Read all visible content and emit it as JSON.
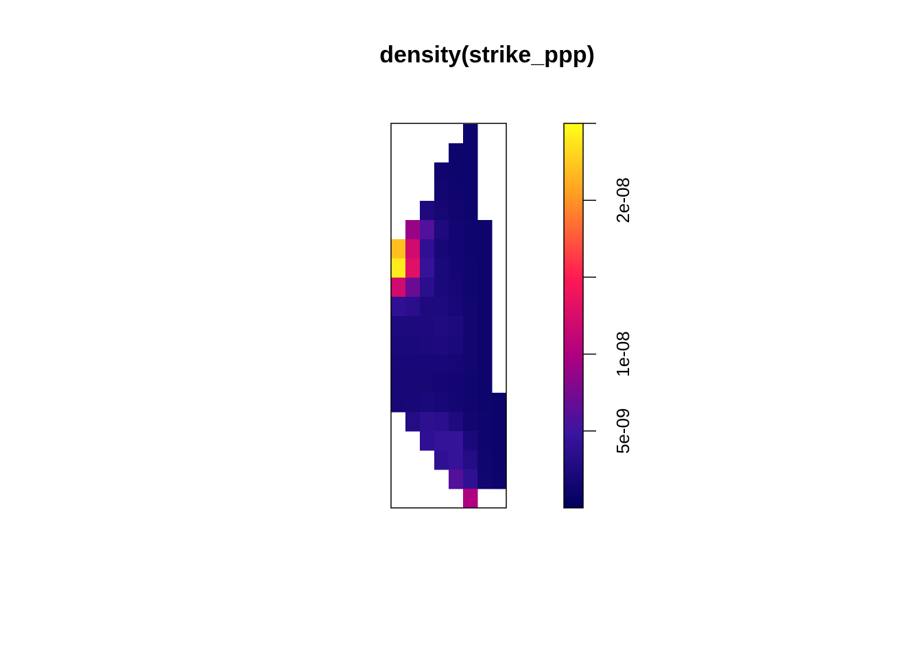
{
  "chart_data": {
    "type": "heatmap",
    "title": "density(strike_ppp)",
    "values": [
      [
        null,
        null,
        null,
        null,
        null,
        1.2e-09,
        null,
        null
      ],
      [
        null,
        null,
        null,
        null,
        1.2e-09,
        1.2e-09,
        null,
        null
      ],
      [
        null,
        null,
        null,
        1.3e-09,
        1.2e-09,
        1.2e-09,
        null,
        null
      ],
      [
        null,
        null,
        null,
        1.5e-09,
        1.3e-09,
        1.2e-09,
        null,
        null
      ],
      [
        null,
        null,
        2.5e-09,
        1.8e-09,
        1.4e-09,
        1.2e-09,
        null,
        null
      ],
      [
        null,
        9e-09,
        6e-09,
        2.5e-09,
        1.6e-09,
        1.3e-09,
        1.2e-09,
        null
      ],
      [
        2.2e-08,
        1.2e-08,
        4e-09,
        2e-09,
        1.6e-09,
        1.3e-09,
        1.2e-09,
        null
      ],
      [
        2.4e-08,
        1.3e-08,
        4.5e-09,
        2.2e-09,
        1.7e-09,
        1.4e-09,
        1.2e-09,
        null
      ],
      [
        1.2e-08,
        7e-09,
        3.5e-09,
        2.2e-09,
        1.8e-09,
        1.4e-09,
        1.2e-09,
        null
      ],
      [
        4e-09,
        3.5e-09,
        2.5e-09,
        2.4e-09,
        2e-09,
        1.5e-09,
        1.2e-09,
        null
      ],
      [
        2.5e-09,
        2.4e-09,
        2.5e-09,
        2.7e-09,
        2.4e-09,
        1.6e-09,
        1.2e-09,
        null
      ],
      [
        2.2e-09,
        2.2e-09,
        2.3e-09,
        2.5e-09,
        2.2e-09,
        1.6e-09,
        1.2e-09,
        null
      ],
      [
        2e-09,
        2e-09,
        2e-09,
        2e-09,
        1.8e-09,
        1.5e-09,
        1.2e-09,
        null
      ],
      [
        1.8e-09,
        1.8e-09,
        1.8e-09,
        1.7e-09,
        1.6e-09,
        1.4e-09,
        1.2e-09,
        null
      ],
      [
        1.8e-09,
        2e-09,
        2.2e-09,
        2e-09,
        1.7e-09,
        1.4e-09,
        1.2e-09,
        1.1e-09
      ],
      [
        null,
        3e-09,
        3.8e-09,
        3.5e-09,
        2.6e-09,
        1.6e-09,
        1.3e-09,
        1.1e-09
      ],
      [
        null,
        null,
        4e-09,
        4.5e-09,
        4.5e-09,
        2.2e-09,
        1.3e-09,
        1.1e-09
      ],
      [
        null,
        null,
        null,
        4e-09,
        4.5e-09,
        3e-09,
        1.4e-09,
        1.1e-09
      ],
      [
        null,
        null,
        null,
        null,
        6e-09,
        4e-09,
        1.5e-09,
        1.2e-09
      ],
      [
        null,
        null,
        null,
        null,
        null,
        1e-08,
        null,
        null
      ]
    ],
    "zlim": [
      0,
      2.5e-08
    ],
    "zticks": [
      {
        "value": 5e-09,
        "label": "5e-09"
      },
      {
        "value": 1e-08,
        "label": "1e-08"
      },
      {
        "value": 1.5e-08,
        "label": null
      },
      {
        "value": 2e-08,
        "label": "2e-08"
      },
      {
        "value": 2.5e-08,
        "label": null
      }
    ],
    "colormap": [
      "#00005c",
      "#3c14a0",
      "#b00080",
      "#ff1a55",
      "#ff9424",
      "#ffff1a"
    ]
  }
}
